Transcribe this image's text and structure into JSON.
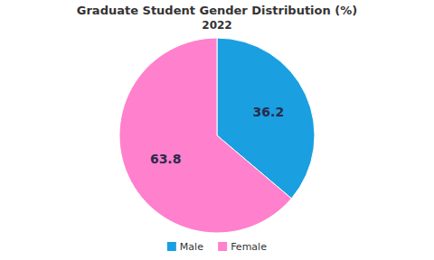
{
  "chart_data": {
    "type": "pie",
    "title": "Graduate Student Gender Distribution (%)",
    "subtitle": "2022",
    "categories": [
      "Male",
      "Female"
    ],
    "values": [
      36.2,
      63.8
    ],
    "colors": [
      "#1a9fe0",
      "#ff80cc"
    ],
    "data_labels": true,
    "legend": "bottom"
  }
}
